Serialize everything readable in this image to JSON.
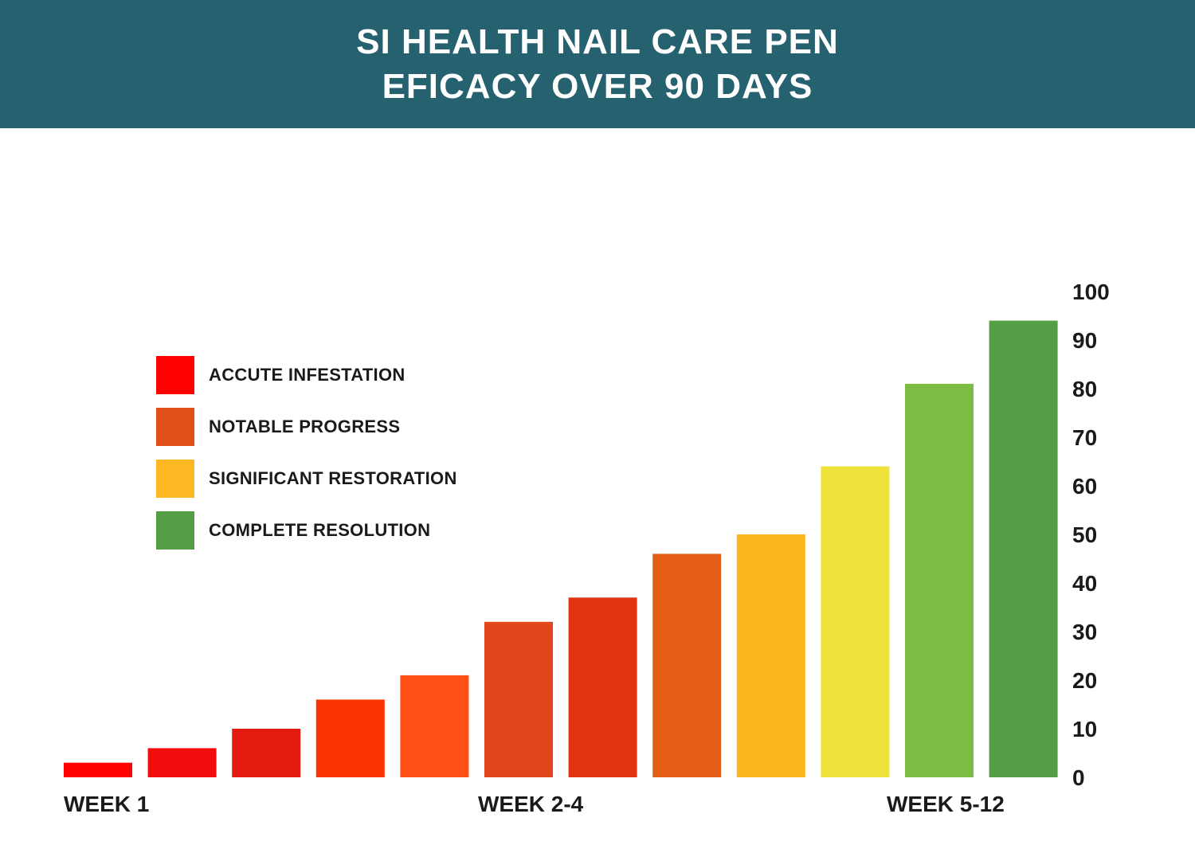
{
  "header": {
    "title_line1": "SI HEALTH NAIL CARE PEN",
    "title_line2": "EFICACY OVER 90 DAYS",
    "background": "#266170"
  },
  "legend": [
    {
      "label": "ACCUTE INFESTATION",
      "color": "#FF0000"
    },
    {
      "label": "NOTABLE PROGRESS",
      "color": "#E2501A"
    },
    {
      "label": "SIGNIFICANT RESTORATION",
      "color": "#FDB824"
    },
    {
      "label": "COMPLETE RESOLUTION",
      "color": "#559E46"
    }
  ],
  "x_labels": {
    "week1": "WEEK 1",
    "week2_4": "WEEK 2-4",
    "week5_12": "WEEK 5-12"
  },
  "chart_data": {
    "type": "bar",
    "values": [
      3,
      6,
      10,
      16,
      21,
      32,
      37,
      46,
      50,
      64,
      81,
      94
    ],
    "colors": [
      "#FF0000",
      "#F20D0D",
      "#E31B0F",
      "#FA3400",
      "#FF4F14",
      "#E1471A",
      "#E03510",
      "#E45E16",
      "#FDB620",
      "#F0E23A",
      "#7DBC44",
      "#559E46"
    ],
    "ylim": [
      0,
      100
    ],
    "yticks": [
      0,
      10,
      20,
      30,
      40,
      50,
      60,
      70,
      80,
      90,
      100
    ],
    "y_axis_side": "right",
    "grid": false,
    "legend_position": "left"
  }
}
